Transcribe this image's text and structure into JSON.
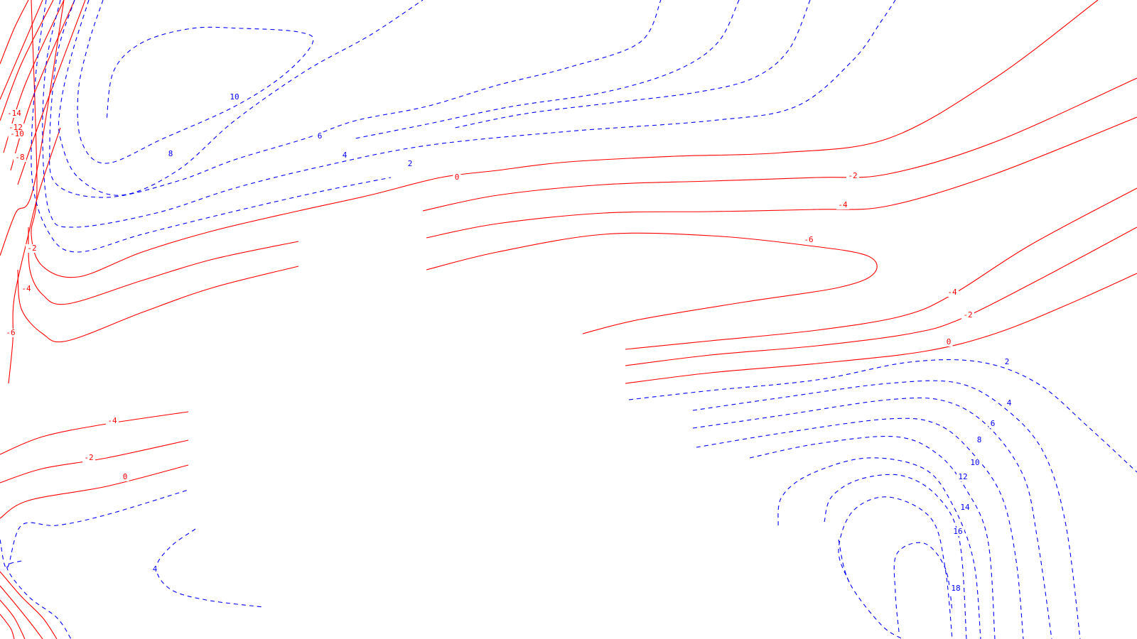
{
  "chart_data": {
    "type": "contour",
    "title": "",
    "xlabel": "",
    "ylabel": "",
    "colors": {
      "negative": "#ff0000",
      "positive": "#0000ff",
      "background": "#ffffff"
    },
    "style": {
      "negative": "solid",
      "positive": "dashed"
    },
    "levels": [
      -14,
      -12,
      -10,
      -8,
      -6,
      -4,
      -2,
      0,
      2,
      4,
      6,
      8,
      10,
      12,
      14,
      16,
      18
    ],
    "contour_labels": [
      {
        "id": "L1",
        "text": "-14"
      },
      {
        "id": "L2",
        "text": "-12"
      },
      {
        "id": "L3",
        "text": "-10"
      },
      {
        "id": "L4",
        "text": "-8"
      },
      {
        "id": "L5",
        "text": "-2"
      },
      {
        "id": "L6",
        "text": "-4"
      },
      {
        "id": "L7",
        "text": "-6"
      },
      {
        "id": "L8",
        "text": "10"
      },
      {
        "id": "L9",
        "text": "8"
      },
      {
        "id": "L10",
        "text": "6"
      },
      {
        "id": "L11",
        "text": "4"
      },
      {
        "id": "L12",
        "text": "2"
      },
      {
        "id": "L13",
        "text": "0"
      },
      {
        "id": "L14",
        "text": "-2"
      },
      {
        "id": "L15",
        "text": "-4"
      },
      {
        "id": "L16",
        "text": "-6"
      },
      {
        "id": "L17",
        "text": "-4"
      },
      {
        "id": "L18",
        "text": "-2"
      },
      {
        "id": "L19",
        "text": "0"
      },
      {
        "id": "L20",
        "text": "2"
      },
      {
        "id": "L21",
        "text": "4"
      },
      {
        "id": "L22",
        "text": "6"
      },
      {
        "id": "L23",
        "text": "8"
      },
      {
        "id": "L24",
        "text": "10"
      },
      {
        "id": "L25",
        "text": "12"
      },
      {
        "id": "L26",
        "text": "14"
      },
      {
        "id": "L27",
        "text": "16"
      },
      {
        "id": "L28",
        "text": "18"
      },
      {
        "id": "L29",
        "text": "-4"
      },
      {
        "id": "L30",
        "text": "-2"
      },
      {
        "id": "L31",
        "text": "0"
      },
      {
        "id": "L32",
        "text": "4"
      }
    ]
  }
}
